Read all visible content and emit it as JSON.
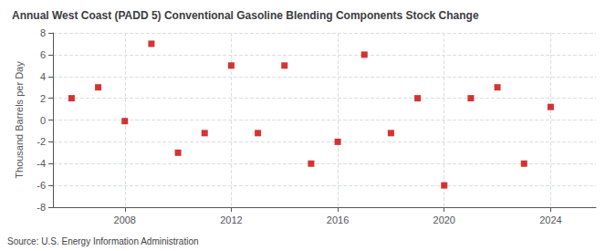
{
  "chart_data": {
    "type": "scatter",
    "title": "Annual West Coast (PADD 5) Conventional Gasoline Blending Components Stock Change",
    "ylabel": "Thousand Barrels per Day",
    "annotations": [
      "Source: U.S. Energy Information Administration"
    ],
    "x": [
      2006,
      2007,
      2008,
      2009,
      2010,
      2011,
      2012,
      2013,
      2014,
      2015,
      2016,
      2017,
      2018,
      2019,
      2020,
      2021,
      2022,
      2023,
      2024
    ],
    "values": [
      2.0,
      3.0,
      -0.1,
      7.0,
      -3.0,
      -1.2,
      5.0,
      -1.2,
      5.0,
      -4.0,
      -2.0,
      6.0,
      -1.2,
      2.0,
      -6.0,
      2.0,
      3.0,
      -4.0,
      1.2
    ],
    "color": "#cc0000",
    "marker": "square",
    "xlim": [
      2005.3,
      2025.7
    ],
    "xticks": [
      2008,
      2012,
      2016,
      2020,
      2024
    ],
    "ylim": [
      -8,
      8
    ],
    "yticks": [
      -8,
      -6,
      -4,
      -2,
      0,
      2,
      4,
      6,
      8
    ],
    "grid": true
  }
}
